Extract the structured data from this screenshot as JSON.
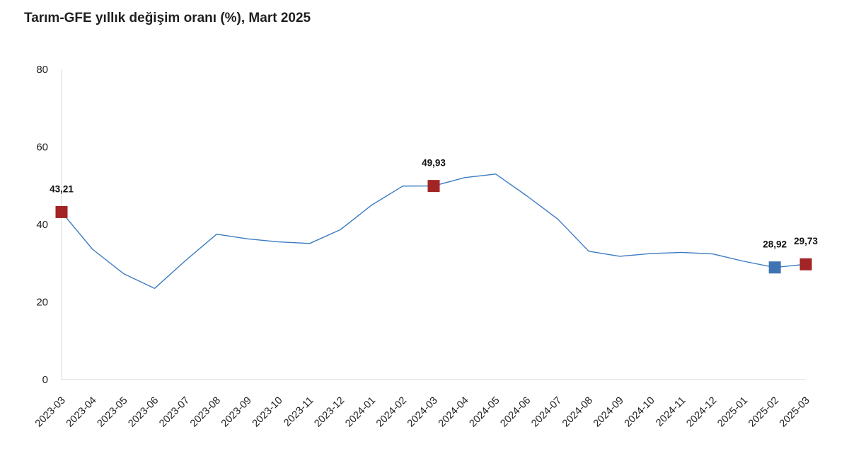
{
  "chart_data": {
    "type": "line",
    "title": "Tarım-GFE yıllık değişim oranı (%), Mart 2025",
    "xlabel": "",
    "ylabel": "",
    "ylim": [
      0,
      80
    ],
    "yticks": [
      "0",
      "20",
      "40",
      "60",
      "80"
    ],
    "grid": false,
    "legend": "none",
    "categories": [
      "2023-03",
      "2023-04",
      "2023-05",
      "2023-06",
      "2023-07",
      "2023-08",
      "2023-09",
      "2023-10",
      "2023-11",
      "2023-12",
      "2024-01",
      "2024-02",
      "2024-03",
      "2024-04",
      "2024-05",
      "2024-06",
      "2024-07",
      "2024-08",
      "2024-09",
      "2024-10",
      "2024-11",
      "2024-12",
      "2025-01",
      "2025-02",
      "2025-03"
    ],
    "series": [
      {
        "values": [
          43.21,
          33.6,
          27.3,
          23.5,
          30.7,
          37.5,
          36.3,
          35.5,
          35.1,
          38.7,
          45.0,
          49.9,
          49.93,
          52.1,
          53.0,
          47.4,
          41.4,
          33.1,
          31.8,
          32.5,
          32.8,
          32.4,
          30.5,
          28.92,
          29.73
        ]
      }
    ],
    "markers": [
      {
        "index": 0,
        "label": "43,21",
        "color": "#a32424"
      },
      {
        "index": 12,
        "label": "49,93",
        "color": "#a32424"
      },
      {
        "index": 23,
        "label": "28,92",
        "color": "#3e74b3"
      },
      {
        "index": 24,
        "label": "29,73",
        "color": "#a32424"
      }
    ],
    "line_color": "#3b7cc2",
    "axis_color": "#d9d9d9"
  }
}
